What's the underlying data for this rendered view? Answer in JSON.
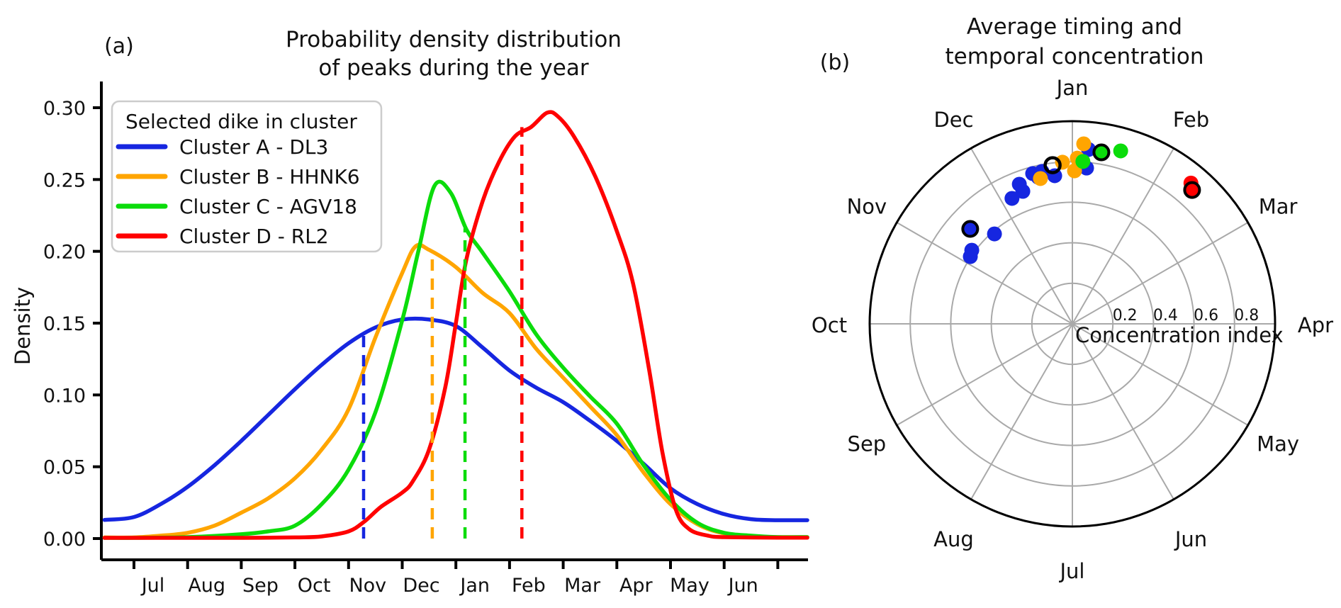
{
  "figure": {
    "background": "#ffffff",
    "panel_a": {
      "label": "(a)",
      "title_line1": "Probability density distribution",
      "title_line2": "of peaks during the year",
      "ylabel": "Density",
      "y_tick_labels": [
        "0.00",
        "0.05",
        "0.10",
        "0.15",
        "0.20",
        "0.25",
        "0.30"
      ],
      "month_labels": [
        "Jul",
        "Aug",
        "Sep",
        "Oct",
        "Nov",
        "Dec",
        "Jan",
        "Feb",
        "Mar",
        "Apr",
        "May",
        "Jun"
      ],
      "legend": {
        "title": "Selected dike in cluster",
        "entries": [
          {
            "label": "Cluster A - DL3",
            "color": "#1626e0"
          },
          {
            "label": "Cluster B - HHNK6",
            "color": "#ffa500"
          },
          {
            "label": "Cluster C - AGV18",
            "color": "#0bdc0b"
          },
          {
            "label": "Cluster D - RL2",
            "color": "#ff0000"
          }
        ]
      }
    },
    "panel_b": {
      "label": "(b)",
      "title_line1": "Average timing and",
      "title_line2": "temporal concentration",
      "month_labels": [
        "Jan",
        "Feb",
        "Mar",
        "Apr",
        "May",
        "Jun",
        "Jul",
        "Aug",
        "Sep",
        "Oct",
        "Nov",
        "Dec"
      ],
      "radial_tick_labels": [
        "0.2",
        "0.4",
        "0.6",
        "0.8"
      ],
      "radial_axis_label": "Concentration index",
      "grid_color": "#a9a9a9",
      "outline_color": "#000000"
    }
  },
  "chart_data": [
    {
      "type": "line",
      "title": "Probability density distribution of peaks during the year",
      "xlabel": "",
      "ylabel": "Density",
      "x_unit": "months after 1 Jul (0 = Jul tick)",
      "x_tick_labels": [
        "Jul",
        "Aug",
        "Sep",
        "Oct",
        "Nov",
        "Dec",
        "Jan",
        "Feb",
        "Mar",
        "Apr",
        "May",
        "Jun"
      ],
      "yticks": [
        0.0,
        0.05,
        0.1,
        0.15,
        0.2,
        0.25,
        0.3
      ],
      "ylim": [
        0,
        0.315
      ],
      "grid": false,
      "legend_position": "upper left",
      "series": [
        {
          "name": "Cluster A - DL3",
          "color": "#1626e0",
          "points": [
            [
              -0.55,
              0.013
            ],
            [
              0,
              0.015
            ],
            [
              0.5,
              0.024
            ],
            [
              1,
              0.036
            ],
            [
              1.5,
              0.051
            ],
            [
              2,
              0.068
            ],
            [
              2.5,
              0.086
            ],
            [
              3,
              0.104
            ],
            [
              3.5,
              0.121
            ],
            [
              4,
              0.136
            ],
            [
              4.5,
              0.147
            ],
            [
              5,
              0.1525
            ],
            [
              5.5,
              0.1525
            ],
            [
              6,
              0.148
            ],
            [
              6.5,
              0.133
            ],
            [
              7,
              0.117
            ],
            [
              7.5,
              0.105
            ],
            [
              8,
              0.095
            ],
            [
              8.5,
              0.082
            ],
            [
              9,
              0.068
            ],
            [
              9.5,
              0.052
            ],
            [
              10,
              0.035
            ],
            [
              10.5,
              0.024
            ],
            [
              11,
              0.017
            ],
            [
              11.5,
              0.0135
            ],
            [
              12,
              0.0128
            ],
            [
              12.55,
              0.0128
            ]
          ]
        },
        {
          "name": "Cluster B - HHNK6",
          "color": "#ffa500",
          "points": [
            [
              -0.55,
              0.0008
            ],
            [
              0,
              0.0008
            ],
            [
              0.5,
              0.002
            ],
            [
              1,
              0.004
            ],
            [
              1.5,
              0.009
            ],
            [
              2,
              0.018
            ],
            [
              2.5,
              0.028
            ],
            [
              3,
              0.042
            ],
            [
              3.5,
              0.062
            ],
            [
              4,
              0.09
            ],
            [
              4.5,
              0.14
            ],
            [
              5,
              0.185
            ],
            [
              5.25,
              0.2035
            ],
            [
              5.5,
              0.201
            ],
            [
              6,
              0.189
            ],
            [
              6.5,
              0.171
            ],
            [
              7,
              0.157
            ],
            [
              7.5,
              0.132
            ],
            [
              8,
              0.112
            ],
            [
              8.5,
              0.092
            ],
            [
              9,
              0.072
            ],
            [
              9.5,
              0.046
            ],
            [
              10,
              0.024
            ],
            [
              10.5,
              0.01
            ],
            [
              11,
              0.0035
            ],
            [
              11.5,
              0.0015
            ],
            [
              12,
              0.001
            ],
            [
              12.55,
              0.001
            ]
          ]
        },
        {
          "name": "Cluster C - AGV18",
          "color": "#0bdc0b",
          "points": [
            [
              -0.55,
              0.0005
            ],
            [
              0,
              0.0005
            ],
            [
              1,
              0.001
            ],
            [
              2,
              0.003
            ],
            [
              2.5,
              0.005
            ],
            [
              3,
              0.009
            ],
            [
              3.5,
              0.024
            ],
            [
              4,
              0.048
            ],
            [
              4.5,
              0.088
            ],
            [
              5,
              0.152
            ],
            [
              5.3,
              0.2
            ],
            [
              5.6,
              0.2455
            ],
            [
              5.9,
              0.241
            ],
            [
              6.2,
              0.215
            ],
            [
              6.5,
              0.199
            ],
            [
              7,
              0.172
            ],
            [
              7.5,
              0.142
            ],
            [
              8,
              0.119
            ],
            [
              8.5,
              0.099
            ],
            [
              9,
              0.08
            ],
            [
              9.5,
              0.051
            ],
            [
              10,
              0.027
            ],
            [
              10.5,
              0.011
            ],
            [
              11,
              0.004
            ],
            [
              11.5,
              0.002
            ],
            [
              12,
              0.001
            ],
            [
              12.55,
              0.001
            ]
          ]
        },
        {
          "name": "Cluster D - RL2",
          "color": "#ff0000",
          "points": [
            [
              -0.55,
              0.0005
            ],
            [
              0,
              0.0005
            ],
            [
              1,
              0.0005
            ],
            [
              2,
              0.0005
            ],
            [
              3,
              0.0008
            ],
            [
              3.5,
              0.0015
            ],
            [
              4,
              0.005
            ],
            [
              4.3,
              0.012
            ],
            [
              4.6,
              0.022
            ],
            [
              5,
              0.032
            ],
            [
              5.2,
              0.04
            ],
            [
              5.5,
              0.062
            ],
            [
              5.8,
              0.105
            ],
            [
              6,
              0.15
            ],
            [
              6.2,
              0.195
            ],
            [
              6.5,
              0.235
            ],
            [
              6.8,
              0.262
            ],
            [
              7.1,
              0.28
            ],
            [
              7.4,
              0.2865
            ],
            [
              7.7,
              0.2965
            ],
            [
              7.9,
              0.294
            ],
            [
              8.2,
              0.28
            ],
            [
              8.6,
              0.252
            ],
            [
              9,
              0.214
            ],
            [
              9.3,
              0.178
            ],
            [
              9.6,
              0.118
            ],
            [
              9.85,
              0.06
            ],
            [
              10.1,
              0.02
            ],
            [
              10.35,
              0.0065
            ],
            [
              10.7,
              0.002
            ],
            [
              11,
              0.001
            ],
            [
              12,
              0.0006
            ],
            [
              12.55,
              0.0006
            ]
          ]
        }
      ],
      "mean_dashed_lines": [
        {
          "cluster": "A",
          "color": "#1626e0",
          "month_x": 4.28,
          "top_value": 0.144
        },
        {
          "cluster": "B",
          "color": "#ffa500",
          "month_x": 5.56,
          "top_value": 0.196
        },
        {
          "cluster": "C",
          "color": "#0bdc0b",
          "month_x": 6.17,
          "top_value": 0.216
        },
        {
          "cluster": "D",
          "color": "#ff0000",
          "month_x": 7.23,
          "top_value": 0.2865
        }
      ]
    },
    {
      "type": "scatter_polar",
      "title": "Average timing and temporal concentration",
      "angle_zero": "Jan at top, clockwise",
      "radial_label": "Concentration index",
      "radial_ticks": [
        0.2,
        0.4,
        0.6,
        0.8
      ],
      "radial_max": 1.0,
      "points": [
        {
          "cluster": "A",
          "color": "#1626e0",
          "angle_deg": -56.6,
          "radius": 0.603,
          "selected": false
        },
        {
          "cluster": "A",
          "color": "#1626e0",
          "angle_deg": -53.8,
          "radius": 0.615,
          "selected": false
        },
        {
          "cluster": "A",
          "color": "#1626e0",
          "angle_deg": -47.1,
          "radius": 0.688,
          "selected": true
        },
        {
          "cluster": "A",
          "color": "#1626e0",
          "angle_deg": -40.9,
          "radius": 0.587,
          "selected": false
        },
        {
          "cluster": "A",
          "color": "#1626e0",
          "angle_deg": -25.7,
          "radius": 0.687,
          "selected": false
        },
        {
          "cluster": "A",
          "color": "#1626e0",
          "angle_deg": -20.5,
          "radius": 0.698,
          "selected": false
        },
        {
          "cluster": "A",
          "color": "#1626e0",
          "angle_deg": -20.8,
          "radius": 0.737,
          "selected": false
        },
        {
          "cluster": "A",
          "color": "#1626e0",
          "angle_deg": -14.8,
          "radius": 0.767,
          "selected": false
        },
        {
          "cluster": "A",
          "color": "#1626e0",
          "angle_deg": -13.1,
          "radius": 0.743,
          "selected": false
        },
        {
          "cluster": "A",
          "color": "#1626e0",
          "angle_deg": -11.3,
          "radius": 0.767,
          "selected": false
        },
        {
          "cluster": "A",
          "color": "#1626e0",
          "angle_deg": -6.8,
          "radius": 0.736,
          "selected": false
        },
        {
          "cluster": "A",
          "color": "#1626e0",
          "angle_deg": 5.2,
          "radius": 0.772,
          "selected": false
        },
        {
          "cluster": "A",
          "color": "#1626e0",
          "angle_deg": 5.3,
          "radius": 0.864,
          "selected": false
        },
        {
          "cluster": "B",
          "color": "#ffa500",
          "angle_deg": -12.4,
          "radius": 0.734,
          "selected": false
        },
        {
          "cluster": "B",
          "color": "#ffa500",
          "angle_deg": -3.5,
          "radius": 0.799,
          "selected": false
        },
        {
          "cluster": "B",
          "color": "#ffa500",
          "angle_deg": 0.8,
          "radius": 0.755,
          "selected": false
        },
        {
          "cluster": "B",
          "color": "#ffa500",
          "angle_deg": 1.7,
          "radius": 0.818,
          "selected": false
        },
        {
          "cluster": "B",
          "color": "#ffa500",
          "angle_deg": 3.6,
          "radius": 0.89,
          "selected": false
        },
        {
          "cluster": "B",
          "color": "#ffa500",
          "angle_deg": -7.1,
          "radius": 0.789,
          "selected": true,
          "style": "open"
        },
        {
          "cluster": "C",
          "color": "#0bdc0b",
          "angle_deg": 3.7,
          "radius": 0.803,
          "selected": false
        },
        {
          "cluster": "C",
          "color": "#0bdc0b",
          "angle_deg": 9.6,
          "radius": 0.858,
          "selected": true
        },
        {
          "cluster": "C",
          "color": "#0bdc0b",
          "angle_deg": 15.6,
          "radius": 0.886,
          "selected": false
        },
        {
          "cluster": "D",
          "color": "#ff0000",
          "angle_deg": 40.1,
          "radius": 0.908,
          "selected": false
        },
        {
          "cluster": "D",
          "color": "#ff0000",
          "angle_deg": 41.8,
          "radius": 0.886,
          "selected": true
        }
      ]
    }
  ]
}
